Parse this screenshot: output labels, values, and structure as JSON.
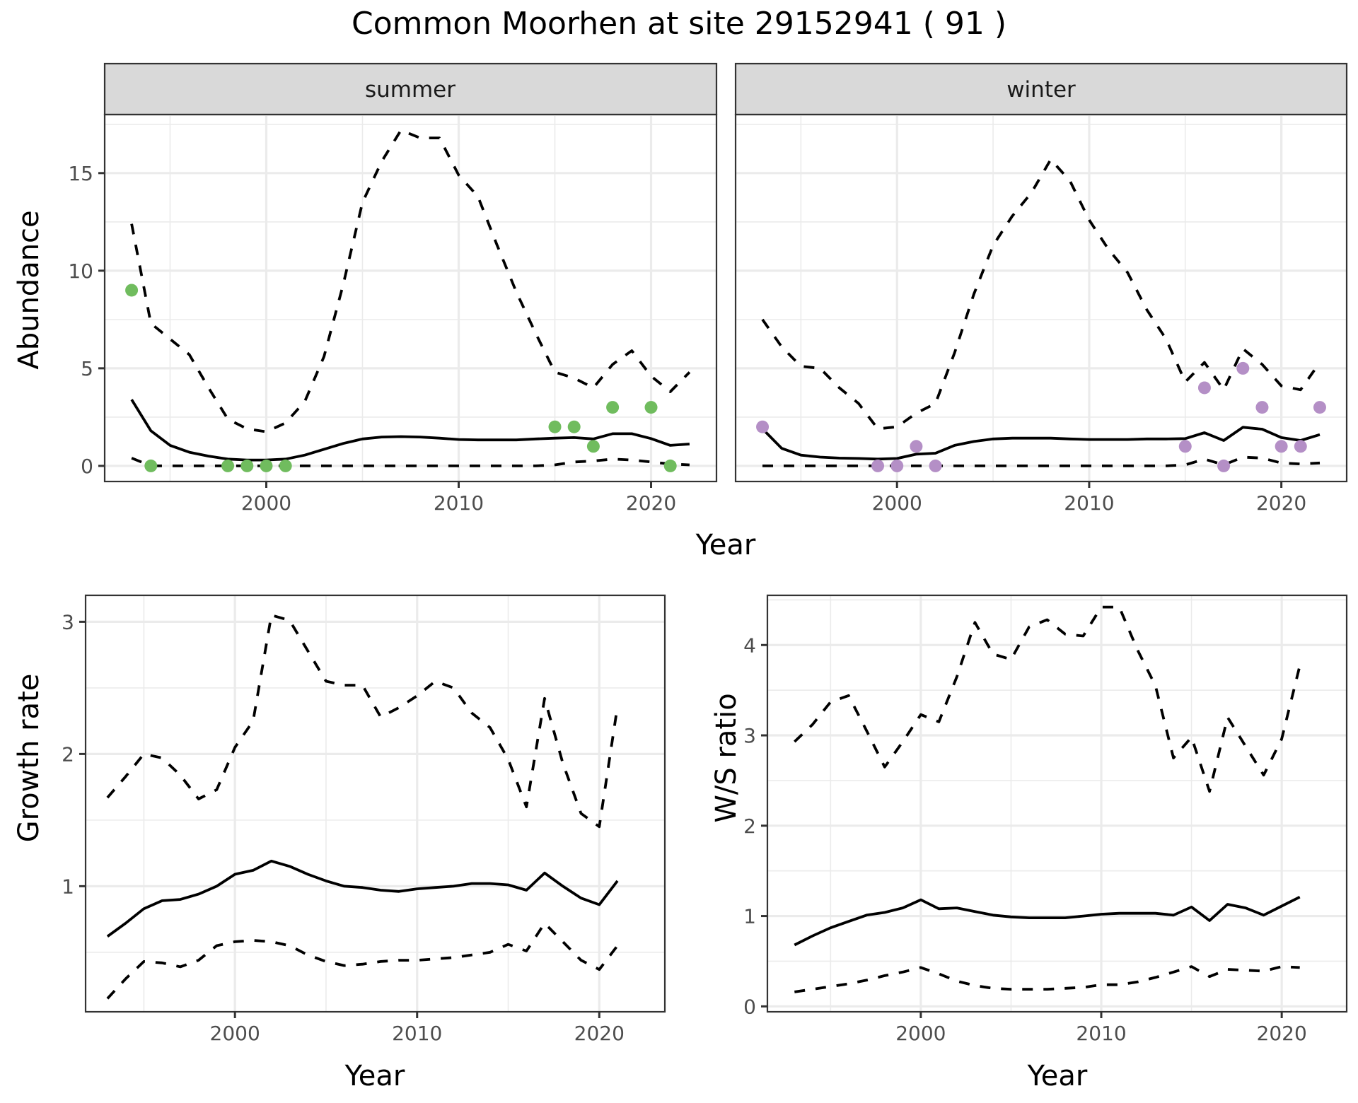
{
  "title": "Common Moorhen at site 29152941 ( 91 )",
  "colors": {
    "summer_points": "#70bc5e",
    "winter_points": "#b48fc6",
    "lines": "#000000",
    "strip_bg": "#d9d9d9",
    "grid": "#ebebeb"
  },
  "chart_data": [
    {
      "id": "abundance-summer",
      "type": "line",
      "facet": "summer",
      "xlabel": "Year",
      "ylabel": "Abundance",
      "xlim": [
        1991.6,
        2023.4
      ],
      "ylim": [
        -0.8,
        18.0
      ],
      "xticks": [
        2000,
        2010,
        2020
      ],
      "xtick_labels": [
        "2000",
        "2010",
        "2020"
      ],
      "yticks": [
        0,
        5,
        10,
        15
      ],
      "ytick_labels": [
        "0",
        "5",
        "10",
        "15"
      ],
      "x": [
        1993,
        1994,
        1995,
        1996,
        1997,
        1998,
        1999,
        2000,
        2001,
        2002,
        2003,
        2004,
        2005,
        2006,
        2007,
        2008,
        2009,
        2010,
        2011,
        2012,
        2013,
        2014,
        2015,
        2016,
        2017,
        2018,
        2019,
        2020,
        2021,
        2022
      ],
      "series": [
        {
          "name": "mean",
          "style": "solid",
          "values": [
            3.4,
            1.8,
            1.05,
            0.7,
            0.5,
            0.35,
            0.3,
            0.3,
            0.35,
            0.55,
            0.85,
            1.15,
            1.38,
            1.48,
            1.5,
            1.48,
            1.42,
            1.35,
            1.33,
            1.33,
            1.33,
            1.38,
            1.42,
            1.45,
            1.38,
            1.65,
            1.65,
            1.4,
            1.05,
            1.12
          ]
        },
        {
          "name": "upper",
          "style": "dashed",
          "values": [
            12.4,
            7.3,
            6.5,
            5.7,
            4.0,
            2.4,
            1.9,
            1.75,
            2.2,
            3.3,
            5.6,
            9.3,
            13.5,
            15.6,
            17.2,
            16.8,
            16.8,
            14.9,
            13.8,
            11.3,
            8.9,
            6.8,
            4.8,
            4.5,
            4.0,
            5.2,
            5.9,
            4.6,
            3.8,
            4.8
          ]
        },
        {
          "name": "lower",
          "style": "dashed",
          "values": [
            0.4,
            0,
            0,
            0,
            0,
            0,
            0,
            0,
            0,
            0,
            0,
            0,
            0,
            0,
            0,
            0,
            0,
            0,
            0,
            0,
            0,
            0,
            0.05,
            0.2,
            0.25,
            0.35,
            0.3,
            0.2,
            0.1,
            0.05
          ]
        }
      ],
      "points": {
        "name": "observed",
        "color": "#70bc5e",
        "x": [
          1993,
          1994,
          1998,
          1999,
          2000,
          2001,
          2015,
          2016,
          2017,
          2018,
          2020,
          2021
        ],
        "y": [
          9,
          0,
          0,
          0,
          0,
          0,
          2,
          2,
          1,
          3,
          3,
          0
        ]
      }
    },
    {
      "id": "abundance-winter",
      "type": "line",
      "facet": "winter",
      "xlabel": "Year",
      "ylabel": "Abundance",
      "xlim": [
        1991.6,
        2023.4
      ],
      "ylim": [
        -0.8,
        18.0
      ],
      "xticks": [
        2000,
        2010,
        2020
      ],
      "xtick_labels": [
        "2000",
        "2010",
        "2020"
      ],
      "yticks": [
        0,
        5,
        10,
        15
      ],
      "ytick_labels": [
        "0",
        "5",
        "10",
        "15"
      ],
      "x": [
        1993,
        1994,
        1995,
        1996,
        1997,
        1998,
        1999,
        2000,
        2001,
        2002,
        2003,
        2004,
        2005,
        2006,
        2007,
        2008,
        2009,
        2010,
        2011,
        2012,
        2013,
        2014,
        2015,
        2016,
        2017,
        2018,
        2019,
        2020,
        2021,
        2022
      ],
      "series": [
        {
          "name": "mean",
          "style": "solid",
          "values": [
            1.9,
            0.9,
            0.55,
            0.45,
            0.4,
            0.38,
            0.35,
            0.38,
            0.6,
            0.65,
            1.05,
            1.25,
            1.38,
            1.42,
            1.42,
            1.42,
            1.38,
            1.35,
            1.35,
            1.35,
            1.38,
            1.38,
            1.4,
            1.7,
            1.3,
            1.98,
            1.88,
            1.45,
            1.3,
            1.6
          ]
        },
        {
          "name": "upper",
          "style": "dashed",
          "values": [
            7.5,
            6.1,
            5.1,
            5.0,
            4.0,
            3.2,
            1.9,
            2.0,
            2.7,
            3.2,
            5.8,
            8.8,
            11.3,
            12.8,
            14.0,
            15.7,
            14.6,
            12.6,
            11.1,
            9.9,
            8.0,
            6.5,
            4.3,
            5.3,
            3.9,
            6.0,
            5.2,
            4.1,
            3.9,
            5.3
          ]
        },
        {
          "name": "lower",
          "style": "dashed",
          "values": [
            0,
            0,
            0,
            0,
            0,
            0,
            0,
            0,
            0,
            0,
            0,
            0,
            0,
            0,
            0,
            0,
            0,
            0,
            0,
            0,
            0,
            0,
            0.05,
            0.35,
            0.05,
            0.45,
            0.4,
            0.15,
            0.1,
            0.15
          ]
        }
      ],
      "points": {
        "name": "observed",
        "color": "#b48fc6",
        "x": [
          1993,
          1999,
          2000,
          2001,
          2002,
          2015,
          2016,
          2017,
          2018,
          2019,
          2020,
          2021,
          2022
        ],
        "y": [
          2,
          0,
          0,
          1,
          0,
          1,
          4,
          0,
          5,
          3,
          1,
          1,
          3
        ]
      }
    },
    {
      "id": "growth-rate",
      "type": "line",
      "xlabel": "Year",
      "ylabel": "Growth rate",
      "xlim": [
        1991.8,
        2023.6
      ],
      "ylim": [
        0.05,
        3.2
      ],
      "xticks": [
        2000,
        2010,
        2020
      ],
      "xtick_labels": [
        "2000",
        "2010",
        "2020"
      ],
      "yticks": [
        1,
        2,
        3
      ],
      "ytick_labels": [
        "1",
        "2",
        "3"
      ],
      "x": [
        1993,
        1994,
        1995,
        1996,
        1997,
        1998,
        1999,
        2000,
        2001,
        2002,
        2003,
        2004,
        2005,
        2006,
        2007,
        2008,
        2009,
        2010,
        2011,
        2012,
        2013,
        2014,
        2015,
        2016,
        2017,
        2018,
        2019,
        2020,
        2021
      ],
      "series": [
        {
          "name": "mean",
          "style": "solid",
          "values": [
            0.62,
            0.72,
            0.83,
            0.89,
            0.9,
            0.94,
            1.0,
            1.09,
            1.12,
            1.19,
            1.15,
            1.09,
            1.04,
            1.0,
            0.99,
            0.97,
            0.96,
            0.98,
            0.99,
            1.0,
            1.02,
            1.02,
            1.01,
            0.97,
            1.1,
            1.0,
            0.91,
            0.86,
            1.04
          ]
        },
        {
          "name": "upper",
          "style": "dashed",
          "values": [
            1.67,
            1.83,
            2.0,
            1.97,
            1.84,
            1.66,
            1.73,
            2.05,
            2.25,
            3.05,
            3.01,
            2.78,
            2.55,
            2.52,
            2.52,
            2.28,
            2.35,
            2.44,
            2.55,
            2.5,
            2.31,
            2.2,
            1.96,
            1.6,
            2.42,
            1.93,
            1.55,
            1.45,
            2.36
          ]
        },
        {
          "name": "lower",
          "style": "dashed",
          "values": [
            0.15,
            0.3,
            0.43,
            0.42,
            0.39,
            0.44,
            0.55,
            0.58,
            0.59,
            0.58,
            0.55,
            0.48,
            0.43,
            0.4,
            0.41,
            0.43,
            0.44,
            0.44,
            0.45,
            0.46,
            0.48,
            0.5,
            0.56,
            0.51,
            0.72,
            0.58,
            0.44,
            0.37,
            0.55
          ]
        }
      ]
    },
    {
      "id": "ws-ratio",
      "type": "line",
      "xlabel": "Year",
      "ylabel": "W/S ratio",
      "xlim": [
        1991.5,
        2023.6
      ],
      "ylim": [
        -0.06,
        4.55
      ],
      "xticks": [
        2000,
        2010,
        2020
      ],
      "xtick_labels": [
        "2000",
        "2010",
        "2020"
      ],
      "yticks": [
        0,
        1,
        2,
        3,
        4
      ],
      "ytick_labels": [
        "0",
        "1",
        "2",
        "3",
        "4"
      ],
      "x": [
        1993,
        1994,
        1995,
        1996,
        1997,
        1998,
        1999,
        2000,
        2001,
        2002,
        2003,
        2004,
        2005,
        2006,
        2007,
        2008,
        2009,
        2010,
        2011,
        2012,
        2013,
        2014,
        2015,
        2016,
        2017,
        2018,
        2019,
        2020,
        2021
      ],
      "series": [
        {
          "name": "mean",
          "style": "solid",
          "values": [
            0.68,
            0.78,
            0.87,
            0.94,
            1.01,
            1.04,
            1.09,
            1.18,
            1.08,
            1.09,
            1.05,
            1.01,
            0.99,
            0.98,
            0.98,
            0.98,
            1.0,
            1.02,
            1.03,
            1.03,
            1.03,
            1.01,
            1.1,
            0.95,
            1.13,
            1.09,
            1.01,
            1.11,
            1.21
          ]
        },
        {
          "name": "upper",
          "style": "dashed",
          "values": [
            2.93,
            3.12,
            3.37,
            3.44,
            3.05,
            2.65,
            2.93,
            3.23,
            3.15,
            3.65,
            4.25,
            3.9,
            3.84,
            4.2,
            4.28,
            4.12,
            4.1,
            4.42,
            4.42,
            3.95,
            3.55,
            2.75,
            2.98,
            2.38,
            3.2,
            2.88,
            2.56,
            2.96,
            3.77
          ]
        },
        {
          "name": "lower",
          "style": "dashed",
          "values": [
            0.16,
            0.19,
            0.22,
            0.25,
            0.29,
            0.34,
            0.38,
            0.43,
            0.36,
            0.28,
            0.23,
            0.2,
            0.19,
            0.19,
            0.19,
            0.2,
            0.21,
            0.24,
            0.24,
            0.27,
            0.32,
            0.38,
            0.44,
            0.33,
            0.41,
            0.4,
            0.39,
            0.44,
            0.43
          ]
        }
      ]
    }
  ]
}
